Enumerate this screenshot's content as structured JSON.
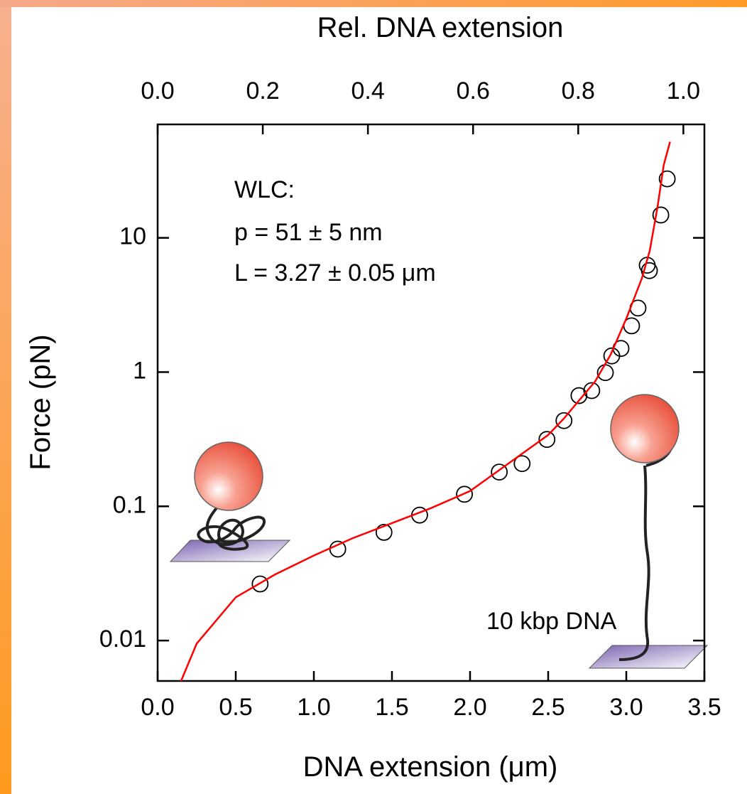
{
  "chart_data": {
    "type": "scatter",
    "title": "Rel. DNA extension",
    "x_label": "DNA extension (μm)",
    "y_label": "Force (pN)",
    "annotations": [
      "WLC:",
      "p = 51 ± 5 nm",
      "L = 3.27 ± 0.05 μm",
      "10 kbp DNA"
    ],
    "xlim": [
      0,
      3.5
    ],
    "xticks": [
      {
        "value": 0,
        "label": "0.0"
      },
      {
        "value": 0.5,
        "label": "0.5"
      },
      {
        "value": 1,
        "label": "1.0"
      },
      {
        "value": 1.5,
        "label": "1.5"
      },
      {
        "value": 2,
        "label": "2.0"
      },
      {
        "value": 2.5,
        "label": "2.5"
      },
      {
        "value": 3,
        "label": "3.0"
      },
      {
        "value": 3.5,
        "label": "3.5"
      }
    ],
    "x2lim": [
      0,
      1.04
    ],
    "x2ticks": [
      {
        "value": 0,
        "label": "0.0"
      },
      0.2,
      0.4,
      0.6,
      0.8,
      {
        "value": 1,
        "label": "1.0"
      }
    ],
    "ylim": [
      0.005,
      70
    ],
    "yticks": [
      0.01,
      0.1,
      1,
      10
    ],
    "log_y": true,
    "series": [
      {
        "type": "scatter",
        "color": "#000000",
        "x": [
          0.656,
          1.153,
          1.449,
          1.677,
          1.964,
          2.187,
          2.333,
          2.492,
          2.601,
          2.697,
          2.779,
          2.866,
          2.907,
          2.966,
          3.034,
          3.075,
          3.134,
          3.148,
          3.221,
          3.262
        ],
        "y": [
          0.0264,
          0.048,
          0.064,
          0.086,
          0.123,
          0.18,
          0.208,
          0.315,
          0.435,
          0.668,
          0.728,
          0.99,
          1.32,
          1.5,
          2.21,
          3.0,
          6.25,
          5.7,
          14.8,
          27.5
        ]
      },
      {
        "type": "line",
        "color": "#ff0000",
        "x": [
          0.15,
          0.25,
          0.5,
          0.75,
          1.0,
          1.25,
          1.5,
          1.75,
          2.0,
          2.25,
          2.5,
          2.6,
          2.7,
          2.8,
          2.9,
          3.0,
          3.1,
          3.15,
          3.2,
          3.24,
          3.28
        ],
        "y": [
          0.005,
          0.0095,
          0.021,
          0.031,
          0.043,
          0.058,
          0.075,
          0.097,
          0.13,
          0.21,
          0.34,
          0.45,
          0.62,
          0.85,
          1.35,
          2.5,
          5.0,
          8.0,
          17,
          35,
          52
        ]
      }
    ]
  }
}
